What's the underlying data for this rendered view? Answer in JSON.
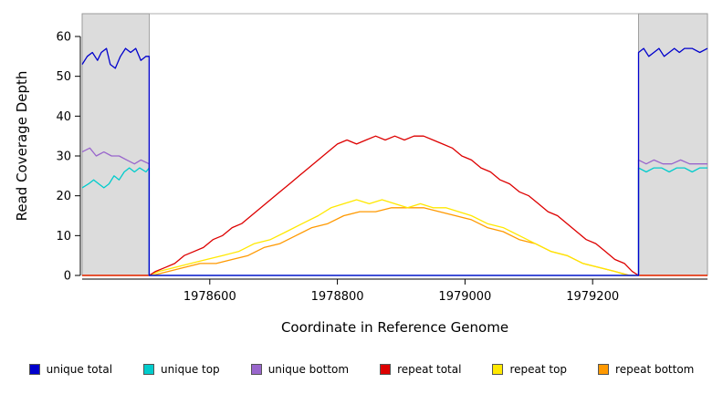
{
  "chart_data": {
    "type": "line",
    "title": "",
    "xlabel": "Coordinate in Reference Genome",
    "ylabel": "Read Coverage Depth",
    "xlim": [
      1978400,
      1979380
    ],
    "ylim": [
      0,
      60
    ],
    "x_ticks": [
      1978600,
      1978800,
      1979000,
      1979200
    ],
    "y_ticks": [
      0,
      10,
      20,
      30,
      40,
      50,
      60
    ],
    "grid": false,
    "legend_position": "bottom",
    "plot_background": "#ffffff",
    "box_color": "#9a9a9a",
    "shaded_regions": [
      {
        "x0": 1978400,
        "x1": 1978505,
        "color": "#dcdcdc"
      },
      {
        "x0": 1979272,
        "x1": 1979380,
        "color": "#dcdcdc"
      }
    ],
    "series": [
      {
        "name": "unique total",
        "color": "#0000cc",
        "points": [
          [
            1978400,
            53
          ],
          [
            1978408,
            55
          ],
          [
            1978416,
            56
          ],
          [
            1978424,
            54
          ],
          [
            1978430,
            56
          ],
          [
            1978438,
            57
          ],
          [
            1978444,
            53
          ],
          [
            1978452,
            52
          ],
          [
            1978460,
            55
          ],
          [
            1978468,
            57
          ],
          [
            1978476,
            56
          ],
          [
            1978484,
            57
          ],
          [
            1978492,
            54
          ],
          [
            1978500,
            55
          ],
          [
            1978505,
            55
          ],
          [
            1978505,
            0
          ],
          [
            1979272,
            0
          ],
          [
            1979272,
            56
          ],
          [
            1979280,
            57
          ],
          [
            1979288,
            55
          ],
          [
            1979296,
            56
          ],
          [
            1979304,
            57
          ],
          [
            1979312,
            55
          ],
          [
            1979320,
            56
          ],
          [
            1979328,
            57
          ],
          [
            1979336,
            56
          ],
          [
            1979344,
            57
          ],
          [
            1979356,
            57
          ],
          [
            1979368,
            56
          ],
          [
            1979380,
            57
          ]
        ]
      },
      {
        "name": "unique top",
        "color": "#00cccc",
        "points": [
          [
            1978400,
            22
          ],
          [
            1978410,
            23
          ],
          [
            1978418,
            24
          ],
          [
            1978426,
            23
          ],
          [
            1978434,
            22
          ],
          [
            1978442,
            23
          ],
          [
            1978450,
            25
          ],
          [
            1978458,
            24
          ],
          [
            1978466,
            26
          ],
          [
            1978474,
            27
          ],
          [
            1978482,
            26
          ],
          [
            1978490,
            27
          ],
          [
            1978500,
            26
          ],
          [
            1978505,
            27
          ],
          [
            1978505,
            0
          ],
          [
            1979272,
            0
          ],
          [
            1979272,
            27
          ],
          [
            1979284,
            26
          ],
          [
            1979296,
            27
          ],
          [
            1979308,
            27
          ],
          [
            1979320,
            26
          ],
          [
            1979332,
            27
          ],
          [
            1979344,
            27
          ],
          [
            1979356,
            26
          ],
          [
            1979368,
            27
          ],
          [
            1979380,
            27
          ]
        ]
      },
      {
        "name": "unique bottom",
        "color": "#9966cc",
        "points": [
          [
            1978400,
            31
          ],
          [
            1978412,
            32
          ],
          [
            1978422,
            30
          ],
          [
            1978434,
            31
          ],
          [
            1978446,
            30
          ],
          [
            1978458,
            30
          ],
          [
            1978470,
            29
          ],
          [
            1978482,
            28
          ],
          [
            1978492,
            29
          ],
          [
            1978505,
            28
          ],
          [
            1978505,
            0
          ],
          [
            1979272,
            0
          ],
          [
            1979272,
            29
          ],
          [
            1979284,
            28
          ],
          [
            1979296,
            29
          ],
          [
            1979310,
            28
          ],
          [
            1979324,
            28
          ],
          [
            1979338,
            29
          ],
          [
            1979352,
            28
          ],
          [
            1979366,
            28
          ],
          [
            1979380,
            28
          ]
        ]
      },
      {
        "name": "repeat total",
        "color": "#dd0000",
        "points": [
          [
            1978400,
            0
          ],
          [
            1978505,
            0
          ],
          [
            1978515,
            1
          ],
          [
            1978530,
            2
          ],
          [
            1978545,
            3
          ],
          [
            1978560,
            5
          ],
          [
            1978575,
            6
          ],
          [
            1978590,
            7
          ],
          [
            1978605,
            9
          ],
          [
            1978620,
            10
          ],
          [
            1978635,
            12
          ],
          [
            1978650,
            13
          ],
          [
            1978665,
            15
          ],
          [
            1978680,
            17
          ],
          [
            1978695,
            19
          ],
          [
            1978710,
            21
          ],
          [
            1978725,
            23
          ],
          [
            1978740,
            25
          ],
          [
            1978755,
            27
          ],
          [
            1978770,
            29
          ],
          [
            1978785,
            31
          ],
          [
            1978800,
            33
          ],
          [
            1978815,
            34
          ],
          [
            1978830,
            33
          ],
          [
            1978845,
            34
          ],
          [
            1978860,
            35
          ],
          [
            1978875,
            34
          ],
          [
            1978890,
            35
          ],
          [
            1978905,
            34
          ],
          [
            1978920,
            35
          ],
          [
            1978935,
            35
          ],
          [
            1978950,
            34
          ],
          [
            1978965,
            33
          ],
          [
            1978980,
            32
          ],
          [
            1978995,
            30
          ],
          [
            1979010,
            29
          ],
          [
            1979025,
            27
          ],
          [
            1979040,
            26
          ],
          [
            1979055,
            24
          ],
          [
            1979070,
            23
          ],
          [
            1979085,
            21
          ],
          [
            1979100,
            20
          ],
          [
            1979115,
            18
          ],
          [
            1979130,
            16
          ],
          [
            1979145,
            15
          ],
          [
            1979160,
            13
          ],
          [
            1979175,
            11
          ],
          [
            1979190,
            9
          ],
          [
            1979205,
            8
          ],
          [
            1979220,
            6
          ],
          [
            1979235,
            4
          ],
          [
            1979250,
            3
          ],
          [
            1979262,
            1
          ],
          [
            1979272,
            0
          ],
          [
            1979380,
            0
          ]
        ]
      },
      {
        "name": "repeat top",
        "color": "#ffe800",
        "points": [
          [
            1978400,
            0
          ],
          [
            1978505,
            0
          ],
          [
            1978520,
            1
          ],
          [
            1978545,
            2
          ],
          [
            1978570,
            3
          ],
          [
            1978595,
            4
          ],
          [
            1978620,
            5
          ],
          [
            1978645,
            6
          ],
          [
            1978670,
            8
          ],
          [
            1978695,
            9
          ],
          [
            1978720,
            11
          ],
          [
            1978745,
            13
          ],
          [
            1978770,
            15
          ],
          [
            1978790,
            17
          ],
          [
            1978810,
            18
          ],
          [
            1978830,
            19
          ],
          [
            1978850,
            18
          ],
          [
            1978870,
            19
          ],
          [
            1978890,
            18
          ],
          [
            1978910,
            17
          ],
          [
            1978930,
            18
          ],
          [
            1978950,
            17
          ],
          [
            1978970,
            17
          ],
          [
            1978990,
            16
          ],
          [
            1979010,
            15
          ],
          [
            1979035,
            13
          ],
          [
            1979060,
            12
          ],
          [
            1979085,
            10
          ],
          [
            1979110,
            8
          ],
          [
            1979135,
            6
          ],
          [
            1979160,
            5
          ],
          [
            1979185,
            3
          ],
          [
            1979210,
            2
          ],
          [
            1979235,
            1
          ],
          [
            1979255,
            0
          ],
          [
            1979380,
            0
          ]
        ]
      },
      {
        "name": "repeat bottom",
        "color": "#ff9900",
        "points": [
          [
            1978400,
            0
          ],
          [
            1978510,
            0
          ],
          [
            1978535,
            1
          ],
          [
            1978560,
            2
          ],
          [
            1978585,
            3
          ],
          [
            1978610,
            3
          ],
          [
            1978635,
            4
          ],
          [
            1978660,
            5
          ],
          [
            1978685,
            7
          ],
          [
            1978710,
            8
          ],
          [
            1978735,
            10
          ],
          [
            1978760,
            12
          ],
          [
            1978785,
            13
          ],
          [
            1978810,
            15
          ],
          [
            1978835,
            16
          ],
          [
            1978860,
            16
          ],
          [
            1978885,
            17
          ],
          [
            1978910,
            17
          ],
          [
            1978935,
            17
          ],
          [
            1978960,
            16
          ],
          [
            1978985,
            15
          ],
          [
            1979010,
            14
          ],
          [
            1979035,
            12
          ],
          [
            1979060,
            11
          ],
          [
            1979085,
            9
          ],
          [
            1979110,
            8
          ],
          [
            1979135,
            6
          ],
          [
            1979160,
            5
          ],
          [
            1979185,
            3
          ],
          [
            1979210,
            2
          ],
          [
            1979235,
            1
          ],
          [
            1979258,
            0
          ],
          [
            1979380,
            0
          ]
        ]
      }
    ]
  }
}
